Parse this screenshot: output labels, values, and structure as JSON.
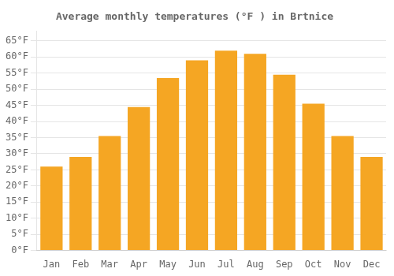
{
  "chart_data": {
    "type": "bar",
    "title": "Average monthly temperatures (°F ) in Brtnice",
    "categories": [
      "Jan",
      "Feb",
      "Mar",
      "Apr",
      "May",
      "Jun",
      "Jul",
      "Aug",
      "Sep",
      "Oct",
      "Nov",
      "Dec"
    ],
    "values": [
      26,
      29,
      35.5,
      44.5,
      53.5,
      59,
      62,
      61,
      54.5,
      45.5,
      35.5,
      29
    ],
    "color": "#F5A623",
    "ylim": [
      0,
      68
    ],
    "yticks": [
      {
        "value": 0,
        "label": "0°F"
      },
      {
        "value": 5,
        "label": "5°F"
      },
      {
        "value": 10,
        "label": "10°F"
      },
      {
        "value": 15,
        "label": "15°F"
      },
      {
        "value": 20,
        "label": "20°F"
      },
      {
        "value": 25,
        "label": "25°F"
      },
      {
        "value": 30,
        "label": "30°F"
      },
      {
        "value": 35,
        "label": "35°F"
      },
      {
        "value": 40,
        "label": "40°F"
      },
      {
        "value": 45,
        "label": "45°F"
      },
      {
        "value": 50,
        "label": "50°F"
      },
      {
        "value": 55,
        "label": "55°F"
      },
      {
        "value": 60,
        "label": "60°F"
      },
      {
        "value": 65,
        "label": "65°F"
      }
    ],
    "grid": true
  }
}
